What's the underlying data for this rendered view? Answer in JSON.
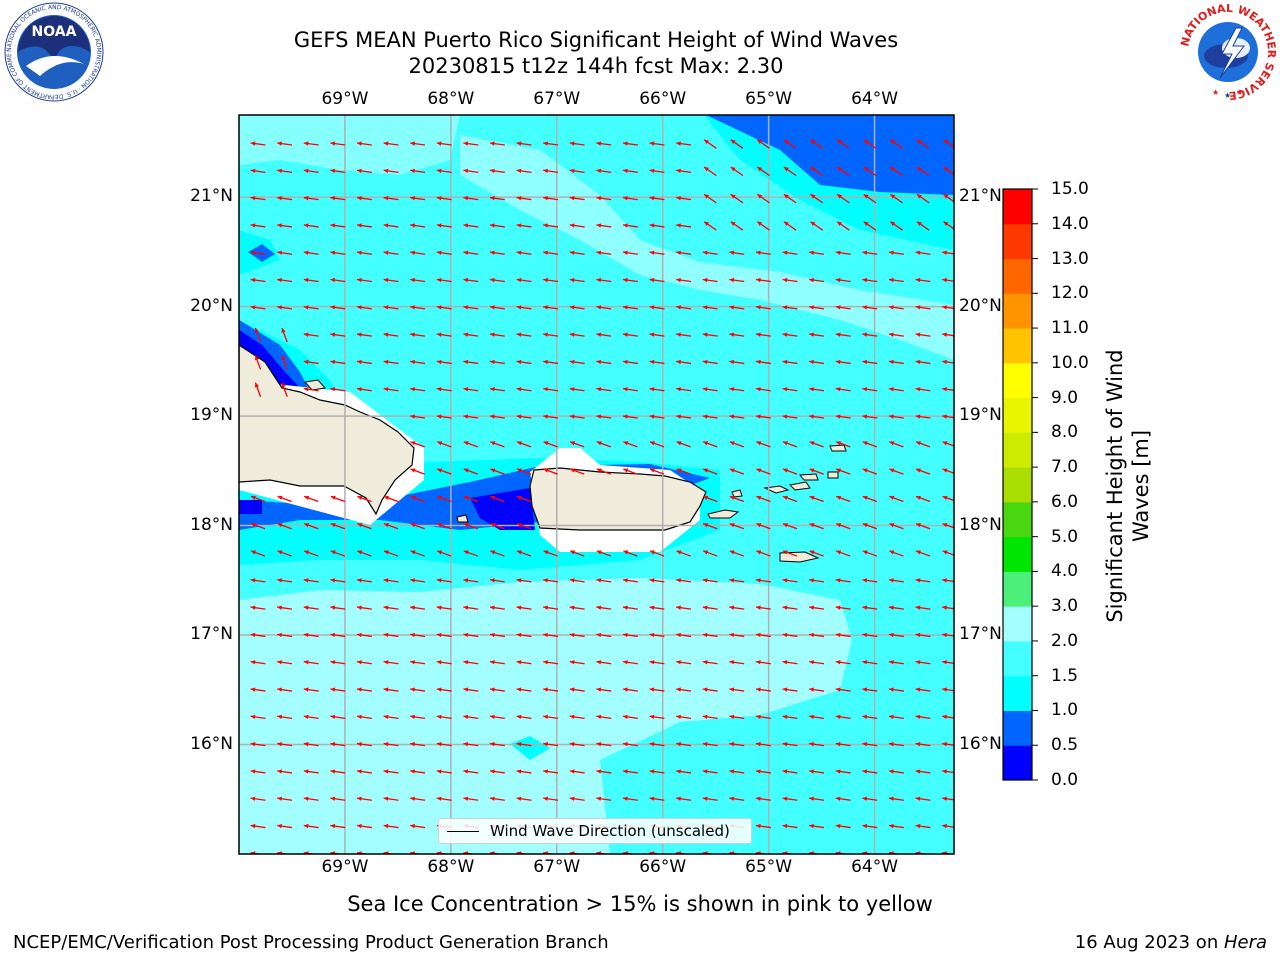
{
  "header": {
    "title_line1": "GEFS MEAN Puerto Rico Significant Height of Wind Waves",
    "title_line2": "20230815 t12z 144h fcst   Max: 2.30"
  },
  "logos": {
    "noaa": {
      "center_text": "NOAA",
      "ring_text": "NATIONAL OCEANIC AND ATMOSPHERIC ADMINISTRATION · U.S. DEPARTMENT OF COMMERCE",
      "icon": "noaa-logo"
    },
    "nws": {
      "ring_text": "NATIONAL WEATHER SERVICE",
      "icon": "nws-logo"
    }
  },
  "map": {
    "lon_ticks": [
      "69°W",
      "68°W",
      "67°W",
      "66°W",
      "65°W",
      "64°W"
    ],
    "lon_values": [
      -69,
      -68,
      -67,
      -66,
      -65,
      -64
    ],
    "lat_ticks": [
      "21°N",
      "20°N",
      "19°N",
      "18°N",
      "17°N",
      "16°N"
    ],
    "lat_values": [
      21,
      20,
      19,
      18,
      17,
      16
    ],
    "extent": {
      "lon_min": -70.0,
      "lon_max": -63.25,
      "lat_min": 15.0,
      "lat_max": 21.75
    },
    "arrow_color": "#ff0000",
    "land_color": "#efecdc",
    "legend_label": "Wind Wave Direction (unscaled)"
  },
  "colorbar": {
    "title": "Significant Height of Wind Waves [m]",
    "title_line1": "Significant Height of Wind",
    "title_line2": "Waves [m]",
    "levels": [
      "0.0",
      "0.5",
      "1.0",
      "1.5",
      "2.0",
      "3.0",
      "4.0",
      "5.0",
      "6.0",
      "7.0",
      "8.0",
      "9.0",
      "10.0",
      "11.0",
      "12.0",
      "13.0",
      "14.0",
      "15.0"
    ],
    "colors": [
      "#0000ff",
      "#0066ff",
      "#00ffff",
      "#44ffff",
      "#a3ffff",
      "#4cf079",
      "#00e600",
      "#49d70f",
      "#aade00",
      "#cbeb00",
      "#e8f400",
      "#ffff00",
      "#ffc300",
      "#ff9300",
      "#ff6600",
      "#ff3800",
      "#ff0000"
    ]
  },
  "footer": {
    "caption": "Sea Ice Concentration > 15% is shown in pink to yellow",
    "credit": "NCEP/EMC/Verification Post Processing Product Generation Branch",
    "date_text": "16 Aug 2023 on ",
    "date_machine": "Hera"
  }
}
